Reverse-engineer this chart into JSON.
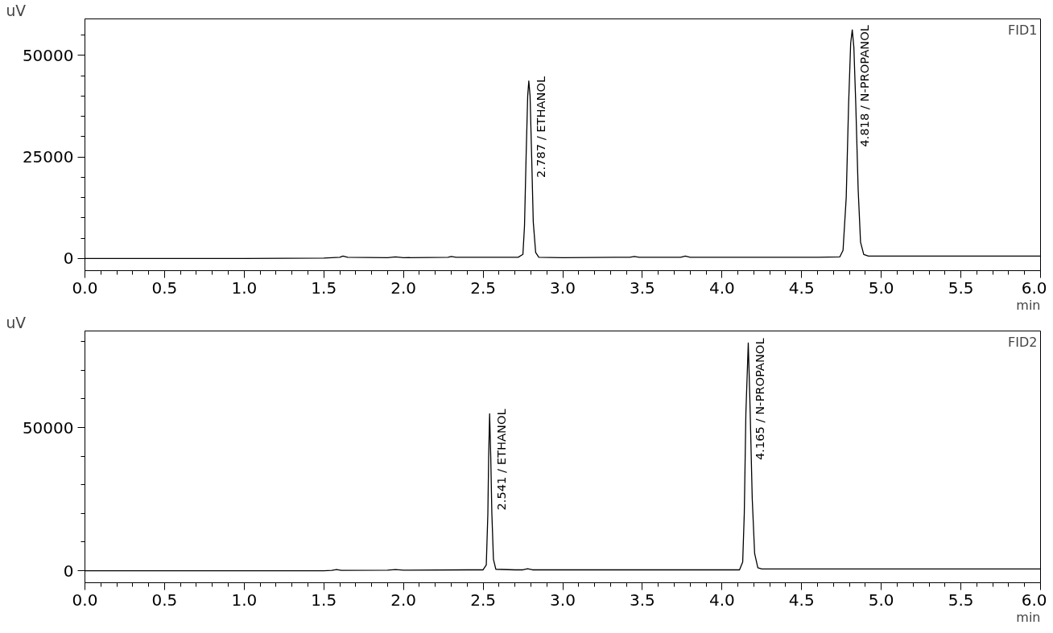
{
  "chart_data": [
    {
      "type": "line",
      "title": "FID1",
      "xlabel": "min",
      "ylabel": "uV",
      "series": [
        {
          "color": "#000000",
          "x": [
            0.0,
            0.5,
            1.0,
            1.5,
            1.6,
            1.62,
            1.65,
            1.9,
            1.95,
            2.0,
            2.28,
            2.3,
            2.33,
            2.6,
            2.72,
            2.75,
            2.76,
            2.77,
            2.78,
            2.787,
            2.795,
            2.805,
            2.815,
            2.83,
            2.85,
            3.0,
            3.42,
            3.45,
            3.48,
            3.74,
            3.77,
            3.8,
            4.2,
            4.6,
            4.74,
            4.76,
            4.78,
            4.795,
            4.808,
            4.818,
            4.828,
            4.84,
            4.855,
            4.87,
            4.89,
            4.92,
            5.5,
            6.0
          ],
          "values": [
            0,
            0,
            0,
            100,
            300,
            600,
            300,
            200,
            400,
            200,
            300,
            500,
            300,
            300,
            300,
            1000,
            8000,
            25000,
            40000,
            43700,
            40000,
            25000,
            9000,
            1500,
            300,
            200,
            300,
            500,
            300,
            300,
            600,
            300,
            300,
            300,
            400,
            2000,
            15000,
            38000,
            53000,
            56300,
            52000,
            38000,
            17000,
            4000,
            1000,
            600,
            600,
            600
          ]
        }
      ],
      "annotations": [
        {
          "text": "2.787 / ETHANOL",
          "x": 2.787,
          "y": 43700
        },
        {
          "text": "4.818 / N-PROPANOL",
          "x": 4.818,
          "y": 56300
        }
      ],
      "xlim": [
        0,
        6
      ],
      "ylim": [
        -3000,
        59000
      ],
      "xticks": [
        {
          "value": 0.0,
          "label": "0.0"
        },
        {
          "value": 0.1,
          "label": null
        },
        {
          "value": 0.2,
          "label": null
        },
        {
          "value": 0.3,
          "label": null
        },
        {
          "value": 0.4,
          "label": null
        },
        {
          "value": 0.5,
          "label": "0.5"
        },
        {
          "value": 0.6,
          "label": null
        },
        {
          "value": 0.7,
          "label": null
        },
        {
          "value": 0.8,
          "label": null
        },
        {
          "value": 0.9,
          "label": null
        },
        {
          "value": 1.0,
          "label": "1.0"
        },
        {
          "value": 1.1,
          "label": null
        },
        {
          "value": 1.2,
          "label": null
        },
        {
          "value": 1.3,
          "label": null
        },
        {
          "value": 1.4,
          "label": null
        },
        {
          "value": 1.5,
          "label": "1.5"
        },
        {
          "value": 1.6,
          "label": null
        },
        {
          "value": 1.7,
          "label": null
        },
        {
          "value": 1.8,
          "label": null
        },
        {
          "value": 1.9,
          "label": null
        },
        {
          "value": 2.0,
          "label": "2.0"
        },
        {
          "value": 2.1,
          "label": null
        },
        {
          "value": 2.2,
          "label": null
        },
        {
          "value": 2.3,
          "label": null
        },
        {
          "value": 2.4,
          "label": null
        },
        {
          "value": 2.5,
          "label": "2.5"
        },
        {
          "value": 2.6,
          "label": null
        },
        {
          "value": 2.7,
          "label": null
        },
        {
          "value": 2.8,
          "label": null
        },
        {
          "value": 2.9,
          "label": null
        },
        {
          "value": 3.0,
          "label": "3.0"
        },
        {
          "value": 3.1,
          "label": null
        },
        {
          "value": 3.2,
          "label": null
        },
        {
          "value": 3.3,
          "label": null
        },
        {
          "value": 3.4,
          "label": null
        },
        {
          "value": 3.5,
          "label": "3.5"
        },
        {
          "value": 3.6,
          "label": null
        },
        {
          "value": 3.7,
          "label": null
        },
        {
          "value": 3.8,
          "label": null
        },
        {
          "value": 3.9,
          "label": null
        },
        {
          "value": 4.0,
          "label": "4.0"
        },
        {
          "value": 4.1,
          "label": null
        },
        {
          "value": 4.2,
          "label": null
        },
        {
          "value": 4.3,
          "label": null
        },
        {
          "value": 4.4,
          "label": null
        },
        {
          "value": 4.5,
          "label": "4.5"
        },
        {
          "value": 4.6,
          "label": null
        },
        {
          "value": 4.7,
          "label": null
        },
        {
          "value": 4.8,
          "label": null
        },
        {
          "value": 4.9,
          "label": null
        },
        {
          "value": 5.0,
          "label": "5.0"
        },
        {
          "value": 5.1,
          "label": null
        },
        {
          "value": 5.2,
          "label": null
        },
        {
          "value": 5.3,
          "label": null
        },
        {
          "value": 5.4,
          "label": null
        },
        {
          "value": 5.5,
          "label": "5.5"
        },
        {
          "value": 5.6,
          "label": null
        },
        {
          "value": 5.7,
          "label": null
        },
        {
          "value": 5.8,
          "label": null
        },
        {
          "value": 5.9,
          "label": null
        },
        {
          "value": 6.0,
          "label": "6.0"
        }
      ],
      "yticks": [
        0,
        {
          "value": 5000,
          "label": null
        },
        {
          "value": 10000,
          "label": null
        },
        {
          "value": 15000,
          "label": null
        },
        {
          "value": 20000,
          "label": null
        },
        25000,
        {
          "value": 30000,
          "label": null
        },
        {
          "value": 35000,
          "label": null
        },
        {
          "value": 40000,
          "label": null
        },
        {
          "value": 45000,
          "label": null
        },
        50000,
        {
          "value": 55000,
          "label": null
        }
      ],
      "grid": false,
      "marker": "none",
      "line_style": "solid"
    },
    {
      "type": "line",
      "title": "FID2",
      "xlabel": "min",
      "ylabel": "uV",
      "series": [
        {
          "color": "#000000",
          "x": [
            0.0,
            0.5,
            1.0,
            1.5,
            1.55,
            1.58,
            1.61,
            1.9,
            1.95,
            2.0,
            2.4,
            2.5,
            2.52,
            2.53,
            2.535,
            2.541,
            2.548,
            2.555,
            2.565,
            2.58,
            2.7,
            2.75,
            2.78,
            2.81,
            3.2,
            3.6,
            4.0,
            4.11,
            4.13,
            4.14,
            4.15,
            4.165,
            4.175,
            4.19,
            4.205,
            4.225,
            4.25,
            5.0,
            6.0
          ],
          "values": [
            0,
            0,
            0,
            0,
            100,
            400,
            100,
            200,
            400,
            200,
            300,
            300,
            2000,
            20000,
            40000,
            54800,
            40000,
            20000,
            4000,
            500,
            300,
            300,
            700,
            300,
            300,
            300,
            300,
            300,
            3000,
            20000,
            55000,
            79500,
            60000,
            25000,
            6000,
            1000,
            600,
            600,
            600
          ]
        }
      ],
      "annotations": [
        {
          "text": "2.541 / ETHANOL",
          "x": 2.541,
          "y": 54800
        },
        {
          "text": "4.165 / N-PROPANOL",
          "x": 4.165,
          "y": 79500
        }
      ],
      "xlim": [
        0,
        6
      ],
      "ylim": [
        -4200,
        83700
      ],
      "xticks": [
        {
          "value": 0.0,
          "label": "0.0"
        },
        {
          "value": 0.1,
          "label": null
        },
        {
          "value": 0.2,
          "label": null
        },
        {
          "value": 0.3,
          "label": null
        },
        {
          "value": 0.4,
          "label": null
        },
        {
          "value": 0.5,
          "label": "0.5"
        },
        {
          "value": 0.6,
          "label": null
        },
        {
          "value": 0.7,
          "label": null
        },
        {
          "value": 0.8,
          "label": null
        },
        {
          "value": 0.9,
          "label": null
        },
        {
          "value": 1.0,
          "label": "1.0"
        },
        {
          "value": 1.1,
          "label": null
        },
        {
          "value": 1.2,
          "label": null
        },
        {
          "value": 1.3,
          "label": null
        },
        {
          "value": 1.4,
          "label": null
        },
        {
          "value": 1.5,
          "label": "1.5"
        },
        {
          "value": 1.6,
          "label": null
        },
        {
          "value": 1.7,
          "label": null
        },
        {
          "value": 1.8,
          "label": null
        },
        {
          "value": 1.9,
          "label": null
        },
        {
          "value": 2.0,
          "label": "2.0"
        },
        {
          "value": 2.1,
          "label": null
        },
        {
          "value": 2.2,
          "label": null
        },
        {
          "value": 2.3,
          "label": null
        },
        {
          "value": 2.4,
          "label": null
        },
        {
          "value": 2.5,
          "label": "2.5"
        },
        {
          "value": 2.6,
          "label": null
        },
        {
          "value": 2.7,
          "label": null
        },
        {
          "value": 2.8,
          "label": null
        },
        {
          "value": 2.9,
          "label": null
        },
        {
          "value": 3.0,
          "label": "3.0"
        },
        {
          "value": 3.1,
          "label": null
        },
        {
          "value": 3.2,
          "label": null
        },
        {
          "value": 3.3,
          "label": null
        },
        {
          "value": 3.4,
          "label": null
        },
        {
          "value": 3.5,
          "label": "3.5"
        },
        {
          "value": 3.6,
          "label": null
        },
        {
          "value": 3.7,
          "label": null
        },
        {
          "value": 3.8,
          "label": null
        },
        {
          "value": 3.9,
          "label": null
        },
        {
          "value": 4.0,
          "label": "4.0"
        },
        {
          "value": 4.1,
          "label": null
        },
        {
          "value": 4.2,
          "label": null
        },
        {
          "value": 4.3,
          "label": null
        },
        {
          "value": 4.4,
          "label": null
        },
        {
          "value": 4.5,
          "label": "4.5"
        },
        {
          "value": 4.6,
          "label": null
        },
        {
          "value": 4.7,
          "label": null
        },
        {
          "value": 4.8,
          "label": null
        },
        {
          "value": 4.9,
          "label": null
        },
        {
          "value": 5.0,
          "label": "5.0"
        },
        {
          "value": 5.1,
          "label": null
        },
        {
          "value": 5.2,
          "label": null
        },
        {
          "value": 5.3,
          "label": null
        },
        {
          "value": 5.4,
          "label": null
        },
        {
          "value": 5.5,
          "label": "5.5"
        },
        {
          "value": 5.6,
          "label": null
        },
        {
          "value": 5.7,
          "label": null
        },
        {
          "value": 5.8,
          "label": null
        },
        {
          "value": 5.9,
          "label": null
        },
        {
          "value": 6.0,
          "label": "6.0"
        }
      ],
      "yticks": [
        0,
        {
          "value": 10000,
          "label": null
        },
        {
          "value": 20000,
          "label": null
        },
        {
          "value": 30000,
          "label": null
        },
        {
          "value": 40000,
          "label": null
        },
        50000,
        {
          "value": 60000,
          "label": null
        },
        {
          "value": 70000,
          "label": null
        },
        {
          "value": 80000,
          "label": null
        }
      ],
      "grid": false,
      "marker": "none",
      "line_style": "solid"
    }
  ]
}
